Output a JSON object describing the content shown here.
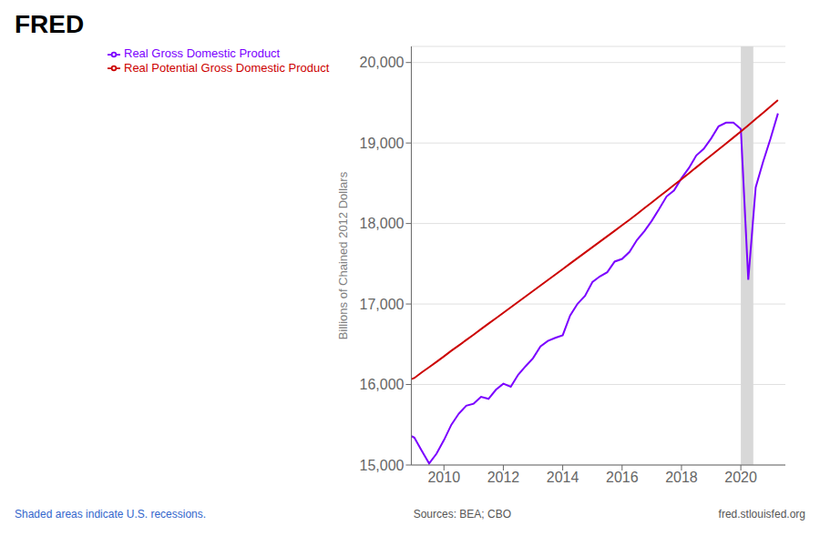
{
  "chart_data": {
    "type": "line",
    "title": "FRED",
    "ylabel": "Billions of Chained 2012 Dollars",
    "x": [
      2008.9,
      2009.0,
      2009.25,
      2009.5,
      2009.75,
      2010.0,
      2010.25,
      2010.5,
      2010.75,
      2011.0,
      2011.25,
      2011.5,
      2011.75,
      2012.0,
      2012.25,
      2012.5,
      2012.75,
      2013.0,
      2013.25,
      2013.5,
      2013.75,
      2014.0,
      2014.25,
      2014.5,
      2014.75,
      2015.0,
      2015.25,
      2015.5,
      2015.75,
      2016.0,
      2016.25,
      2016.5,
      2016.75,
      2017.0,
      2017.25,
      2017.5,
      2017.75,
      2018.0,
      2018.25,
      2018.5,
      2018.75,
      2019.0,
      2019.25,
      2019.5,
      2019.75,
      2020.0,
      2020.25,
      2020.5,
      2020.75,
      2021.0,
      2021.25
    ],
    "series": [
      {
        "name": "Real Gross Domestic Product",
        "color": "#7B00FF",
        "values": [
          15359,
          15341,
          15179,
          15019,
          15141,
          15310,
          15501,
          15638,
          15736,
          15762,
          15847,
          15822,
          15935,
          16010,
          15973,
          16121,
          16227,
          16327,
          16474,
          16541,
          16580,
          16612,
          16858,
          17003,
          17101,
          17273,
          17342,
          17395,
          17527,
          17560,
          17648,
          17795,
          17905,
          18034,
          18181,
          18337,
          18411,
          18562,
          18689,
          18846,
          18927,
          19057,
          19207,
          19252,
          19254,
          19175,
          17302,
          18449,
          18767,
          19055,
          19368
        ]
      },
      {
        "name": "Real Potential Gross Domestic Product",
        "color": "#cc0000",
        "values": [
          16067,
          16080,
          16150,
          16215,
          16282,
          16350,
          16420,
          16485,
          16553,
          16620,
          16688,
          16756,
          16823,
          16891,
          16959,
          17027,
          17094,
          17162,
          17230,
          17298,
          17366,
          17434,
          17502,
          17570,
          17638,
          17706,
          17774,
          17842,
          17910,
          17978,
          18046,
          18118,
          18190,
          18262,
          18334,
          18406,
          18478,
          18550,
          18624,
          18698,
          18772,
          18846,
          18920,
          18994,
          19068,
          19142,
          19220,
          19298,
          19376,
          19454,
          19532
        ]
      }
    ],
    "xlim": [
      2008.9,
      2021.5
    ],
    "ylim": [
      15000,
      20200
    ],
    "xticks": [
      2010,
      2012,
      2014,
      2016,
      2018,
      2020
    ],
    "yticks": [
      {
        "value": 15000,
        "label": "15,000"
      },
      {
        "value": 16000,
        "label": "16,000"
      },
      {
        "value": 17000,
        "label": "17,000"
      },
      {
        "value": 18000,
        "label": "18,000"
      },
      {
        "value": 19000,
        "label": "19,000"
      },
      {
        "value": 20000,
        "label": "20,000"
      }
    ],
    "grid": "y",
    "legend": "upper left",
    "shaded_regions": [
      [
        2020.0,
        2020.42
      ]
    ],
    "annotations": [
      "Shaded areas indicate U.S. recessions.",
      "Sources: BEA; CBO",
      "fred.stlouisfed.org"
    ]
  }
}
